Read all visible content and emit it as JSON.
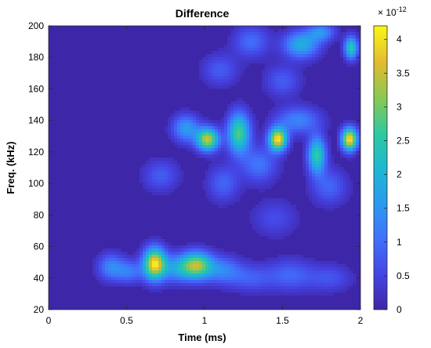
{
  "chart_data": {
    "type": "heatmap",
    "title": "Difference",
    "xlabel": "Time (ms)",
    "ylabel": "Freq. (kHz)",
    "xlim": [
      0,
      2
    ],
    "ylim": [
      20,
      200
    ],
    "xticks": [
      "0",
      "0.5",
      "1",
      "1.5",
      "2"
    ],
    "yticks": [
      "20",
      "40",
      "60",
      "80",
      "100",
      "120",
      "140",
      "160",
      "180",
      "200"
    ],
    "colorbar": {
      "range": [
        0,
        4.2
      ],
      "exponent_label": "× 10",
      "exponent": "-12",
      "ticks": [
        "0",
        "0.5",
        "1",
        "1.5",
        "2",
        "2.5",
        "3",
        "3.5",
        "4"
      ],
      "colormap": "parula"
    },
    "peaks": [
      {
        "x": 0.68,
        "y": 49,
        "value": 4.0,
        "sx": 0.05,
        "sy": 7
      },
      {
        "x": 0.95,
        "y": 48,
        "value": 3.2,
        "sx": 0.07,
        "sy": 6
      },
      {
        "x": 0.4,
        "y": 47,
        "value": 1.3,
        "sx": 0.06,
        "sy": 6
      },
      {
        "x": 0.52,
        "y": 44,
        "value": 1.1,
        "sx": 0.06,
        "sy": 5
      },
      {
        "x": 0.82,
        "y": 46,
        "value": 1.4,
        "sx": 0.07,
        "sy": 6
      },
      {
        "x": 1.12,
        "y": 45,
        "value": 1.2,
        "sx": 0.08,
        "sy": 6
      },
      {
        "x": 1.3,
        "y": 40,
        "value": 0.8,
        "sx": 0.1,
        "sy": 6
      },
      {
        "x": 1.55,
        "y": 42,
        "value": 0.9,
        "sx": 0.1,
        "sy": 7
      },
      {
        "x": 1.8,
        "y": 40,
        "value": 0.7,
        "sx": 0.1,
        "sy": 6
      },
      {
        "x": 1.02,
        "y": 128,
        "value": 3.5,
        "sx": 0.05,
        "sy": 5
      },
      {
        "x": 0.88,
        "y": 135,
        "value": 1.6,
        "sx": 0.06,
        "sy": 6
      },
      {
        "x": 1.22,
        "y": 132,
        "value": 2.8,
        "sx": 0.05,
        "sy": 9
      },
      {
        "x": 1.47,
        "y": 128,
        "value": 4.0,
        "sx": 0.04,
        "sy": 5
      },
      {
        "x": 1.72,
        "y": 118,
        "value": 2.6,
        "sx": 0.04,
        "sy": 8
      },
      {
        "x": 1.93,
        "y": 128,
        "value": 4.1,
        "sx": 0.035,
        "sy": 5
      },
      {
        "x": 1.6,
        "y": 140,
        "value": 1.3,
        "sx": 0.1,
        "sy": 6
      },
      {
        "x": 1.35,
        "y": 112,
        "value": 1.1,
        "sx": 0.08,
        "sy": 8
      },
      {
        "x": 0.72,
        "y": 105,
        "value": 0.8,
        "sx": 0.08,
        "sy": 7
      },
      {
        "x": 1.12,
        "y": 100,
        "value": 0.9,
        "sx": 0.07,
        "sy": 8
      },
      {
        "x": 1.8,
        "y": 98,
        "value": 0.9,
        "sx": 0.08,
        "sy": 8
      },
      {
        "x": 1.62,
        "y": 188,
        "value": 1.9,
        "sx": 0.08,
        "sy": 6
      },
      {
        "x": 1.94,
        "y": 186,
        "value": 2.5,
        "sx": 0.03,
        "sy": 5
      },
      {
        "x": 1.3,
        "y": 190,
        "value": 1.0,
        "sx": 0.08,
        "sy": 7
      },
      {
        "x": 1.75,
        "y": 196,
        "value": 1.4,
        "sx": 0.06,
        "sy": 4
      },
      {
        "x": 1.1,
        "y": 172,
        "value": 0.8,
        "sx": 0.08,
        "sy": 7
      },
      {
        "x": 1.5,
        "y": 165,
        "value": 0.8,
        "sx": 0.08,
        "sy": 7
      },
      {
        "x": 1.45,
        "y": 78,
        "value": 0.6,
        "sx": 0.1,
        "sy": 8
      }
    ]
  }
}
